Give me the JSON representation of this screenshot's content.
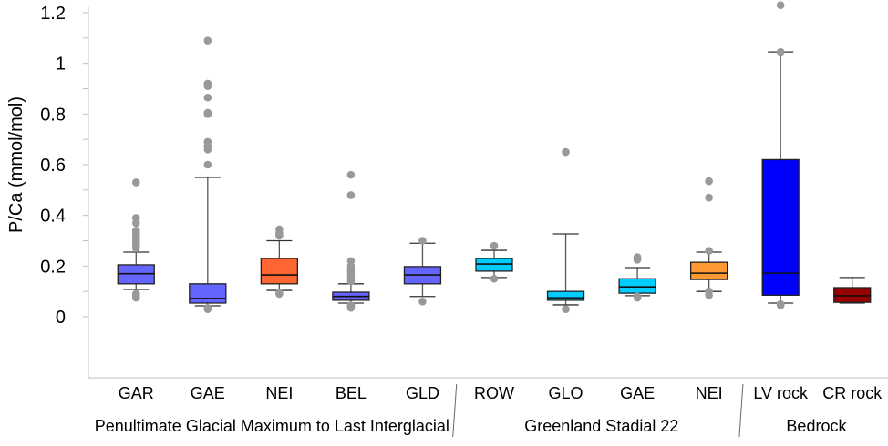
{
  "chart_data": {
    "type": "box",
    "ylabel": "P/Ca (mmol/mol)",
    "ylim": [
      0,
      1.2
    ],
    "yticks": [
      "0",
      "0.2",
      "0.4",
      "0.6",
      "0.8",
      "1",
      "1.2"
    ],
    "grid": false,
    "groups": [
      {
        "label": "Penultimate Glacial Maximum to Last Interglacial",
        "count": 5
      },
      {
        "label": "Greenland Stadial 22",
        "count": 4
      },
      {
        "label": "Bedrock",
        "count": 2
      }
    ],
    "boxes": [
      {
        "label": "GAR",
        "color": "#6464FF",
        "whisker_low": 0.108,
        "q1": 0.13,
        "median": 0.17,
        "q3": 0.205,
        "whisker_high": 0.255,
        "outliers": [
          0.53,
          0.39,
          0.37,
          0.34,
          0.33,
          0.32,
          0.31,
          0.3,
          0.29,
          0.28,
          0.27,
          0.09,
          0.085,
          0.08,
          0.075
        ]
      },
      {
        "label": "GAE",
        "color": "#6464FF",
        "whisker_low": 0.043,
        "q1": 0.054,
        "median": 0.072,
        "q3": 0.13,
        "whisker_high": 0.55,
        "outliers": [
          1.09,
          0.92,
          0.91,
          0.865,
          0.805,
          0.8,
          0.69,
          0.675,
          0.66,
          0.6,
          0.035,
          0.03
        ]
      },
      {
        "label": "NEI",
        "color": "#FF6633",
        "whisker_low": 0.104,
        "q1": 0.13,
        "median": 0.165,
        "q3": 0.23,
        "whisker_high": 0.3,
        "outliers": [
          0.345,
          0.33,
          0.32,
          0.095,
          0.09
        ]
      },
      {
        "label": "BEL",
        "color": "#6464FF",
        "whisker_low": 0.054,
        "q1": 0.065,
        "median": 0.08,
        "q3": 0.097,
        "whisker_high": 0.13,
        "outliers": [
          0.56,
          0.48,
          0.22,
          0.2,
          0.19,
          0.18,
          0.17,
          0.16,
          0.15,
          0.14,
          0.045,
          0.04,
          0.035
        ]
      },
      {
        "label": "GLD",
        "color": "#6464FF",
        "whisker_low": 0.08,
        "q1": 0.13,
        "median": 0.165,
        "q3": 0.198,
        "whisker_high": 0.29,
        "outliers": [
          0.3,
          0.06
        ]
      },
      {
        "label": "ROW",
        "color": "#00CCFF",
        "whisker_low": 0.155,
        "q1": 0.18,
        "median": 0.208,
        "q3": 0.23,
        "whisker_high": 0.262,
        "outliers": [
          0.28,
          0.15
        ]
      },
      {
        "label": "GLO",
        "color": "#00CCFF",
        "whisker_low": 0.047,
        "q1": 0.065,
        "median": 0.075,
        "q3": 0.1,
        "whisker_high": 0.327,
        "outliers": [
          0.65,
          0.03
        ]
      },
      {
        "label": "GAE",
        "color": "#00CCFF",
        "whisker_low": 0.083,
        "q1": 0.093,
        "median": 0.118,
        "q3": 0.15,
        "whisker_high": 0.194,
        "outliers": [
          0.235,
          0.225,
          0.08,
          0.075
        ]
      },
      {
        "label": "NEI",
        "color": "#FF9933",
        "whisker_low": 0.1,
        "q1": 0.147,
        "median": 0.172,
        "q3": 0.215,
        "whisker_high": 0.255,
        "outliers": [
          0.535,
          0.47,
          0.26,
          0.1,
          0.085
        ]
      },
      {
        "label": "LV rock",
        "color": "#0000FF",
        "whisker_low": 0.054,
        "q1": 0.085,
        "median": 0.172,
        "q3": 0.62,
        "whisker_high": 1.045,
        "outliers": [
          1.23,
          1.045,
          0.05,
          0.045
        ]
      },
      {
        "label": "CR rock",
        "color": "#990000",
        "whisker_low": 0.054,
        "q1": 0.057,
        "median": 0.083,
        "q3": 0.115,
        "whisker_high": 0.155,
        "outliers": []
      }
    ]
  }
}
